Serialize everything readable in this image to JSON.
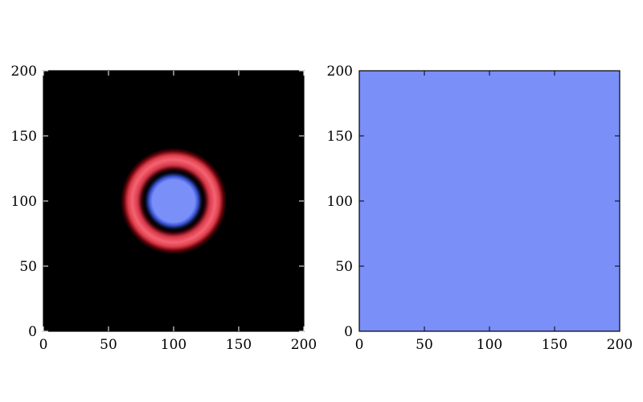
{
  "chart_data": [
    {
      "type": "heatmap",
      "title": "",
      "xlabel": "",
      "ylabel": "",
      "xlim": [
        0,
        200
      ],
      "ylim": [
        0,
        200
      ],
      "xticks": [
        "0",
        "50",
        "100",
        "150",
        "200"
      ],
      "yticks": [
        "0",
        "50",
        "100",
        "150",
        "200"
      ],
      "grid": false,
      "background_color": "#000000",
      "features": [
        {
          "name": "inner disk",
          "shape": "disk",
          "center": [
            100,
            100
          ],
          "radius": 19,
          "color": "#7b8ff8"
        },
        {
          "name": "dark ring",
          "shape": "ring",
          "center": [
            100,
            100
          ],
          "inner_radius": 19,
          "outer_radius": 24,
          "color": "#000000"
        },
        {
          "name": "red ring",
          "shape": "ring",
          "center": [
            100,
            100
          ],
          "inner_radius": 27,
          "outer_radius": 40,
          "peak_radius": 33,
          "color": "#f06070"
        }
      ]
    },
    {
      "type": "heatmap",
      "title": "",
      "xlabel": "",
      "ylabel": "",
      "xlim": [
        0,
        200
      ],
      "ylim": [
        0,
        200
      ],
      "xticks": [
        "0",
        "50",
        "100",
        "150",
        "200"
      ],
      "yticks": [
        "0",
        "50",
        "100",
        "150",
        "200"
      ],
      "grid": false,
      "background_color": "#7b8ff8",
      "features": []
    }
  ]
}
